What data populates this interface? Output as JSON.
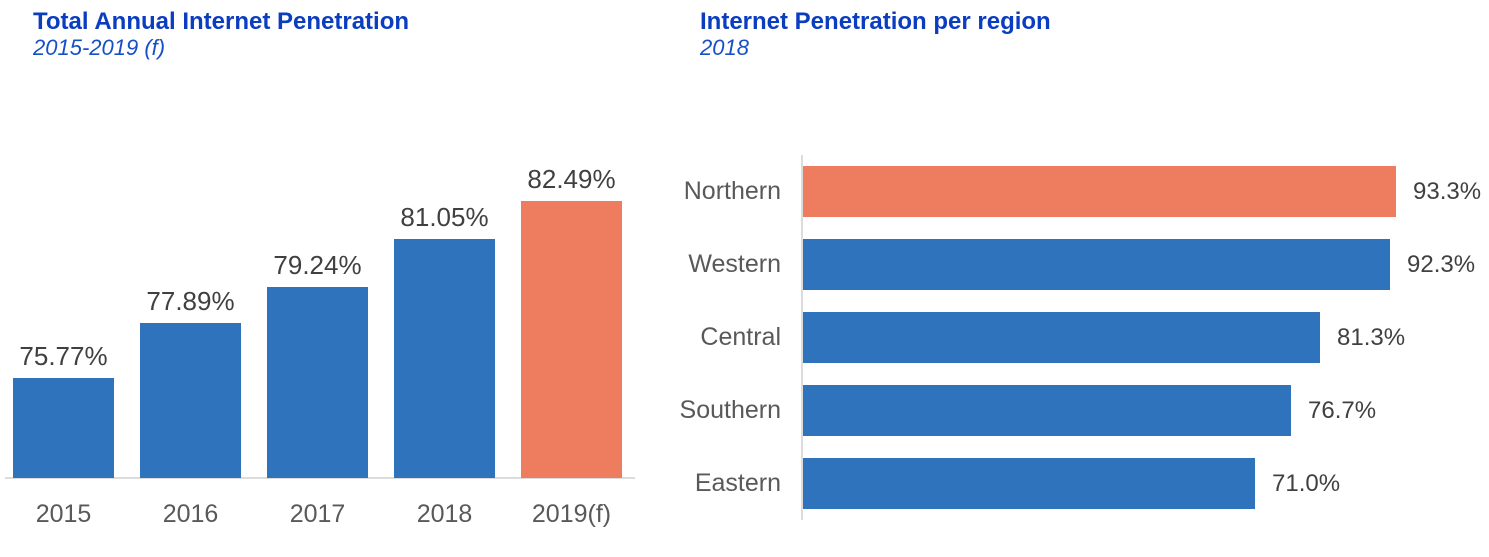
{
  "colors": {
    "bar_blue": "#2E73BC",
    "bar_orange": "#EE7D60",
    "title_blue": "#0B3DC1",
    "subtitle_blue": "#1550C8",
    "value_label_color": "#404040",
    "category_label_color": "#595959",
    "axis_line_color": "#DCDCDC"
  },
  "chart_data": [
    {
      "type": "bar",
      "orientation": "vertical",
      "title": "Total Annual Internet Penetration",
      "subtitle": "2015-2019 (f)",
      "categories": [
        "2015",
        "2016",
        "2017",
        "2018",
        "2019(f)"
      ],
      "values": [
        75.77,
        77.89,
        79.24,
        81.05,
        82.49
      ],
      "value_labels": [
        "75.77%",
        "77.89%",
        "79.24%",
        "81.05%",
        "82.49%"
      ],
      "highlight_index": 4,
      "xlabel": "",
      "ylabel": "",
      "ylim": [
        72,
        84
      ],
      "grid": false,
      "legend": "none"
    },
    {
      "type": "bar",
      "orientation": "horizontal",
      "title": "Internet Penetration per region",
      "subtitle": "2018",
      "categories": [
        "Northern",
        "Western",
        "Central",
        "Southern",
        "Eastern"
      ],
      "values": [
        93.3,
        92.3,
        81.3,
        76.7,
        71.0
      ],
      "value_labels": [
        "93.3%",
        "92.3%",
        "81.3%",
        "76.7%",
        "71.0%"
      ],
      "highlight_index": 0,
      "xlabel": "",
      "ylabel": "",
      "xlim": [
        0,
        100
      ],
      "grid": false,
      "legend": "none"
    }
  ]
}
